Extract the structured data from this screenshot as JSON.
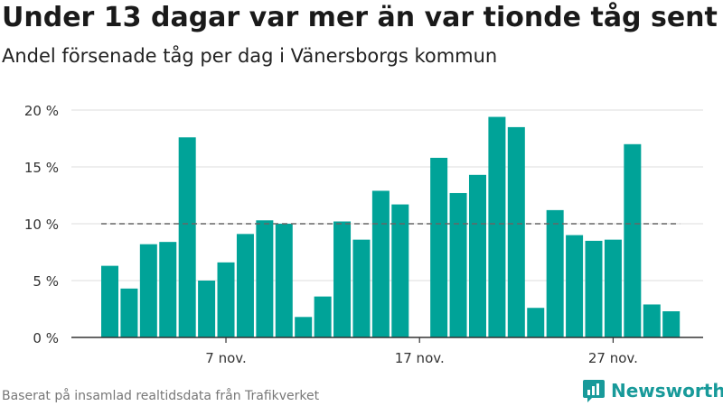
{
  "title": "Under 13 dagar var mer än var tionde tåg sent",
  "subtitle": "Andel försenade tåg per dag i Vänersborgs kommun",
  "source": "Baserat på insamlad realtidsdata från Trafikverket",
  "brand": {
    "name": "Newsworthy",
    "icon": "newsworthy-logo-icon",
    "color": "#189a9a"
  },
  "chart_data": {
    "type": "bar",
    "x": [
      "2023-11-01",
      "2023-11-02",
      "2023-11-03",
      "2023-11-04",
      "2023-11-05",
      "2023-11-06",
      "2023-11-07",
      "2023-11-08",
      "2023-11-09",
      "2023-11-10",
      "2023-11-11",
      "2023-11-12",
      "2023-11-13",
      "2023-11-14",
      "2023-11-15",
      "2023-11-16",
      "2023-11-17",
      "2023-11-18",
      "2023-11-19",
      "2023-11-20",
      "2023-11-21",
      "2023-11-22",
      "2023-11-23",
      "2023-11-24",
      "2023-11-25",
      "2023-11-26",
      "2023-11-27",
      "2023-11-28",
      "2023-11-29",
      "2023-11-30"
    ],
    "values": [
      6.3,
      4.3,
      8.2,
      8.4,
      17.6,
      5.0,
      6.6,
      9.1,
      10.3,
      10.0,
      1.8,
      3.6,
      10.2,
      8.6,
      12.9,
      11.7,
      null,
      15.8,
      12.7,
      14.3,
      19.4,
      18.5,
      2.6,
      11.2,
      9.0,
      8.5,
      8.6,
      17.0,
      2.9,
      2.3
    ],
    "ylim": [
      0,
      20
    ],
    "yticks": [
      {
        "value": 0,
        "label": "0 %"
      },
      {
        "value": 5,
        "label": "5 %"
      },
      {
        "value": 10,
        "label": "10 %"
      },
      {
        "value": 15,
        "label": "15 %"
      },
      {
        "value": 20,
        "label": "20 %"
      }
    ],
    "xticks": [
      {
        "x": "2023-11-07",
        "label": "7 nov."
      },
      {
        "x": "2023-11-17",
        "label": "17 nov."
      },
      {
        "x": "2023-11-27",
        "label": "27 nov."
      }
    ],
    "reference_line": {
      "value": 10,
      "style": "dashed",
      "color": "#666666"
    },
    "bar_color": "#00a398",
    "grid": true,
    "xlabel": "",
    "ylabel": ""
  }
}
